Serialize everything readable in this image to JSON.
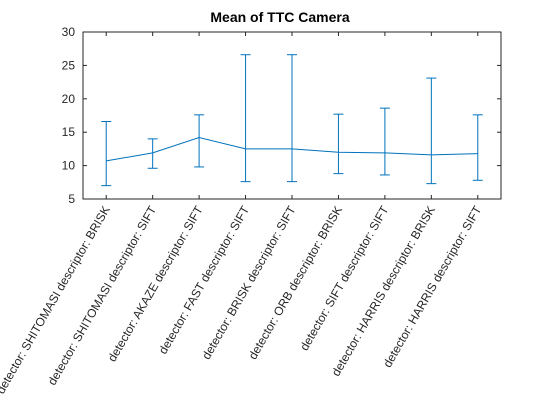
{
  "chart_data": {
    "type": "line",
    "title": "Mean of TTC Camera",
    "xlabel": "",
    "ylabel": "",
    "ylim": [
      5,
      30
    ],
    "yticks": [
      5,
      10,
      15,
      20,
      25,
      30
    ],
    "grid": false,
    "legend": "none",
    "line_color": "#0072bd",
    "categories": [
      "detector: SHITOMASI descriptor: BRISK",
      "detector: SHITOMASI descriptor: SIFT",
      "detector: AKAZE descriptor: SIFT",
      "detector: FAST descriptor: SIFT",
      "detector: BRISK descriptor: SIFT",
      "detector: ORB descriptor: BRISK",
      "detector: SIFT descriptor: SIFT",
      "detector: HARRIS descriptor: BRISK",
      "detector: HARRIS descriptor: SIFT"
    ],
    "series": [
      {
        "values": [
          10.7,
          11.9,
          14.2,
          12.5,
          12.5,
          12.0,
          11.9,
          11.6,
          11.8
        ],
        "lower": [
          7.0,
          9.6,
          9.8,
          7.6,
          7.6,
          8.8,
          8.6,
          7.3,
          7.8
        ],
        "upper": [
          16.6,
          14.0,
          17.6,
          26.6,
          26.6,
          17.7,
          18.6,
          23.1,
          17.6
        ]
      }
    ]
  }
}
